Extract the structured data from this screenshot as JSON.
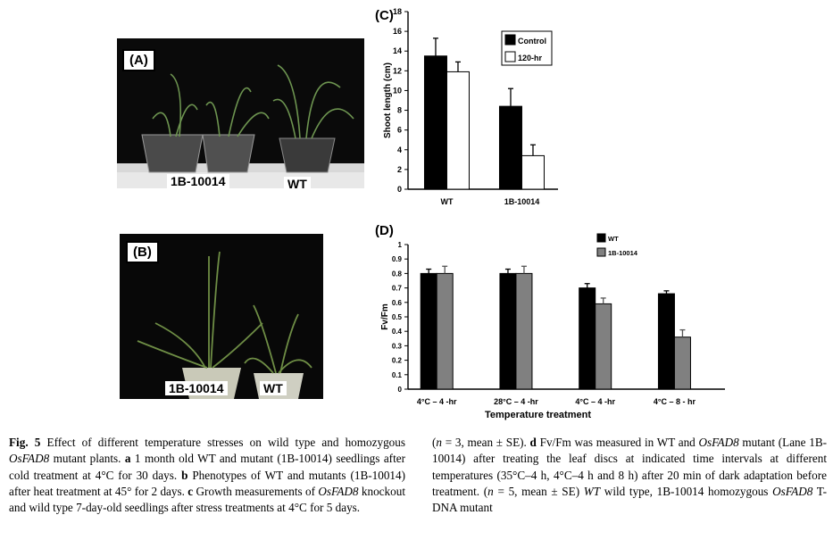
{
  "panels": {
    "A": {
      "tag": "(A)",
      "labels": [
        "1B-10014",
        "WT"
      ]
    },
    "B": {
      "tag": "(B)",
      "labels": [
        "1B-10014",
        "WT"
      ]
    }
  },
  "chart_data": [
    {
      "panel": "(C)",
      "type": "bar",
      "ylabel": "Shoot length (cm)",
      "xlabel": "",
      "categories": [
        "WT",
        "1B-10014"
      ],
      "series": [
        {
          "name": "Control",
          "color": "#000000",
          "values": [
            13.5,
            8.4
          ],
          "errors": [
            1.8,
            1.8
          ]
        },
        {
          "name": "120-hr",
          "color": "#ffffff",
          "values": [
            11.9,
            3.4
          ],
          "errors": [
            1.0,
            1.1
          ]
        }
      ],
      "ylim": [
        0,
        18
      ],
      "yticks": [
        "0",
        "2",
        "4",
        "6",
        "8",
        "10",
        "12",
        "14",
        "16",
        "18"
      ],
      "legend": "top-right"
    },
    {
      "panel": "(D)",
      "type": "bar",
      "ylabel": "Fv/Fm",
      "xlabel": "Temperature treatment",
      "categories": [
        "4°C – 4 -hr",
        "28°C – 4 -hr",
        "4°C – 4 -hr",
        "4°C – 8 - hr"
      ],
      "series": [
        {
          "name": "WT",
          "color": "#000000",
          "values": [
            0.8,
            0.8,
            0.7,
            0.66
          ],
          "errors": [
            0.03,
            0.03,
            0.03,
            0.02
          ]
        },
        {
          "name": "1B-10014",
          "color": "#808080",
          "values": [
            0.8,
            0.8,
            0.59,
            0.36
          ],
          "errors": [
            0.05,
            0.05,
            0.04,
            0.05
          ]
        }
      ],
      "ylim": [
        0,
        1
      ],
      "yticks": [
        "0",
        "0.1",
        "0.2",
        "0.3",
        "0.4",
        "0.5",
        "0.6",
        "0.7",
        "0.8",
        "0.9",
        "1"
      ],
      "legend": "top-right"
    }
  ],
  "caption": {
    "left": [
      {
        "t": "Fig. 5",
        "s": "b"
      },
      {
        "t": " Effect of different temperature stresses on wild type and homozygous "
      },
      {
        "t": "OsFAD8",
        "s": "i"
      },
      {
        "t": " mutant plants. "
      },
      {
        "t": "a",
        "s": "b"
      },
      {
        "t": " 1 month old WT and mutant (1B-10014) seedlings after cold treatment at 4°C for 30 days. "
      },
      {
        "t": "b",
        "s": "b"
      },
      {
        "t": " Phenotypes of WT and mutants (1B-10014) after heat treatment at 45° for 2 days. "
      },
      {
        "t": "c",
        "s": "b"
      },
      {
        "t": " Growth measurements of "
      },
      {
        "t": "OsFAD8",
        "s": "i"
      },
      {
        "t": " knockout and wild type 7-day-old seedlings after stress treatments at 4°C for 5 days."
      }
    ],
    "right": [
      {
        "t": "("
      },
      {
        "t": "n",
        "s": "i"
      },
      {
        "t": " = 3, mean ± SE). "
      },
      {
        "t": "d",
        "s": "b"
      },
      {
        "t": " Fv/Fm was measured in WT and "
      },
      {
        "t": "OsFAD8",
        "s": "i"
      },
      {
        "t": " mutant (Lane 1B-10014) after treating the leaf discs at indicated time intervals at different temperatures (35°C–4 h, 4°C–4 h and 8 h) after 20 min of dark adaptation before treatment. ("
      },
      {
        "t": "n",
        "s": "i"
      },
      {
        "t": " = 5, mean ± SE) "
      },
      {
        "t": "WT",
        "s": "i"
      },
      {
        "t": " wild type, 1B-10014 homozygous "
      },
      {
        "t": "OsFAD8",
        "s": "i"
      },
      {
        "t": " T-DNA mutant"
      }
    ]
  }
}
